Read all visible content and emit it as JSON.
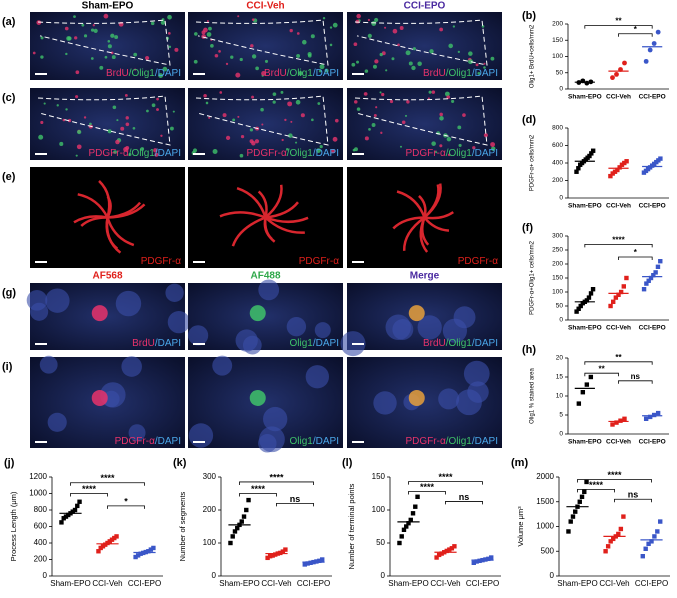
{
  "columns": [
    {
      "text": "Sham-EPO",
      "color": "#000000"
    },
    {
      "text": "CCI-Veh",
      "color": "#e0201b"
    },
    {
      "text": "CCI-EPO",
      "color": "#4a2aa0"
    }
  ],
  "channel_headers": [
    {
      "text": "AF568",
      "color": "#e0201b"
    },
    {
      "text": "AF488",
      "color": "#2fa84a"
    },
    {
      "text": "Merge",
      "color": "#4a2aa0"
    }
  ],
  "image_rows": [
    {
      "letter": "(a)",
      "labels": [
        [
          {
            "text": "BrdU",
            "color": "#e8336b"
          },
          {
            "text": "/Olig1",
            "color": "#3fc26a"
          },
          {
            "text": "/DAPI",
            "color": "#4aa6e8"
          }
        ],
        [
          {
            "text": "BrdU",
            "color": "#e8336b"
          },
          {
            "text": "/Olig1",
            "color": "#3fc26a"
          },
          {
            "text": "/DAPI",
            "color": "#4aa6e8"
          }
        ],
        [
          {
            "text": "BrdU",
            "color": "#e8336b"
          },
          {
            "text": "/Olig1",
            "color": "#3fc26a"
          },
          {
            "text": "/DAPI",
            "color": "#4aa6e8"
          }
        ]
      ]
    },
    {
      "letter": "(c)",
      "labels": [
        [
          {
            "text": "PDGFr-α",
            "color": "#e8336b"
          },
          {
            "text": "/Olig1",
            "color": "#3fc26a"
          },
          {
            "text": "/DAPI",
            "color": "#4aa6e8"
          }
        ],
        [
          {
            "text": "PDGFr-α",
            "color": "#e8336b"
          },
          {
            "text": "/Olig1",
            "color": "#3fc26a"
          },
          {
            "text": "/DAPI",
            "color": "#4aa6e8"
          }
        ],
        [
          {
            "text": "PDGFr-α",
            "color": "#e8336b"
          },
          {
            "text": "/Olig1",
            "color": "#3fc26a"
          },
          {
            "text": "/DAPI",
            "color": "#4aa6e8"
          }
        ]
      ]
    },
    {
      "letter": "(e)",
      "labels": [
        [
          {
            "text": "PDGFr-α",
            "color": "#e0201b"
          }
        ],
        [
          {
            "text": "PDGFr-α",
            "color": "#e0201b"
          }
        ],
        [
          {
            "text": "PDGFr-α",
            "color": "#e0201b"
          }
        ]
      ]
    },
    {
      "letter": "(g)",
      "labels": [
        [
          {
            "text": "BrdU",
            "color": "#e8336b"
          },
          {
            "text": "/DAPI",
            "color": "#4aa6e8"
          }
        ],
        [
          {
            "text": "Olig1",
            "color": "#3fc26a"
          },
          {
            "text": "/DAPI",
            "color": "#4aa6e8"
          }
        ],
        [
          {
            "text": "BrdU",
            "color": "#e8336b"
          },
          {
            "text": "/Olig1",
            "color": "#3fc26a"
          },
          {
            "text": "/DAPI",
            "color": "#4aa6e8"
          }
        ]
      ]
    },
    {
      "letter": "(i)",
      "labels": [
        [
          {
            "text": "PDGFr-α",
            "color": "#e8336b"
          },
          {
            "text": "/DAPI",
            "color": "#4aa6e8"
          }
        ],
        [
          {
            "text": "Olig1",
            "color": "#3fc26a"
          },
          {
            "text": "/DAPI",
            "color": "#4aa6e8"
          }
        ],
        [
          {
            "text": "PDGFr-α",
            "color": "#e8336b"
          },
          {
            "text": "/Olig1",
            "color": "#3fc26a"
          },
          {
            "text": "/DAPI",
            "color": "#4aa6e8"
          }
        ]
      ]
    }
  ],
  "chart_data": [
    {
      "type": "dot",
      "panel": "(b)",
      "ylabel": "Olig1+ BrdU+cells/mm2",
      "categories": [
        "Sham-EPO",
        "CCI-Veh",
        "CCI-EPO"
      ],
      "colors": [
        "#000000",
        "#e0201b",
        "#3a56c8"
      ],
      "markers": [
        "circle",
        "circle",
        "circle"
      ],
      "groups": [
        [
          20,
          25,
          18,
          22
        ],
        [
          35,
          45,
          60,
          80
        ],
        [
          85,
          120,
          140,
          175
        ]
      ],
      "means": [
        21,
        55,
        130
      ],
      "ylim": [
        0,
        200
      ],
      "yticks": [
        0,
        50,
        100,
        150,
        200
      ],
      "annotations": [
        {
          "text": "**",
          "from": 0,
          "to": 2,
          "y": 195
        },
        {
          "text": "*",
          "from": 1,
          "to": 2,
          "y": 170
        }
      ]
    },
    {
      "type": "dot",
      "panel": "(d)",
      "ylabel": "PDGFr-α+ cells/mm2",
      "categories": [
        "Sham-EPO",
        "CCI-Veh",
        "CCI-EPO"
      ],
      "colors": [
        "#000000",
        "#e0201b",
        "#3a56c8"
      ],
      "markers": [
        "square",
        "square",
        "square"
      ],
      "groups": [
        [
          300,
          340,
          380,
          400,
          420,
          440,
          460,
          480,
          510,
          540
        ],
        [
          250,
          280,
          300,
          320,
          350,
          380,
          400,
          420
        ],
        [
          290,
          310,
          330,
          350,
          370,
          390,
          410,
          430,
          450
        ]
      ],
      "means": [
        420,
        340,
        360
      ],
      "ylim": [
        0,
        800
      ],
      "yticks": [
        0,
        200,
        400,
        600,
        800
      ],
      "annotations": []
    },
    {
      "type": "dot",
      "panel": "(f)",
      "ylabel": "PDGFr-α+Olig1+ cells/mm2",
      "categories": [
        "Sham-EPO",
        "CCI-Veh",
        "CCI-EPO"
      ],
      "colors": [
        "#000000",
        "#e0201b",
        "#3a56c8"
      ],
      "markers": [
        "square",
        "square",
        "square"
      ],
      "groups": [
        [
          30,
          40,
          50,
          60,
          65,
          70,
          80,
          95,
          110
        ],
        [
          50,
          65,
          80,
          90,
          100,
          120,
          150
        ],
        [
          110,
          130,
          140,
          150,
          160,
          170,
          190,
          210
        ]
      ],
      "means": [
        65,
        95,
        155
      ],
      "ylim": [
        0,
        300
      ],
      "yticks": [
        0,
        50,
        100,
        150,
        200,
        250,
        300
      ],
      "annotations": [
        {
          "text": "****",
          "from": 0,
          "to": 2,
          "y": 270
        },
        {
          "text": "*",
          "from": 1,
          "to": 2,
          "y": 225
        }
      ]
    },
    {
      "type": "dot",
      "panel": "(h)",
      "ylabel": "Olig1 % stained area",
      "categories": [
        "Sham-EPO",
        "CCI-Veh",
        "CCI-EPO"
      ],
      "colors": [
        "#000000",
        "#e0201b",
        "#3a56c8"
      ],
      "markers": [
        "square",
        "square",
        "square"
      ],
      "groups": [
        [
          8,
          11,
          13,
          15
        ],
        [
          2.5,
          3,
          3.5,
          4
        ],
        [
          4,
          4.5,
          5,
          5.5
        ]
      ],
      "means": [
        12,
        3.3,
        4.8
      ],
      "ylim": [
        0,
        20
      ],
      "yticks": [
        0,
        5,
        10,
        15,
        20
      ],
      "annotations": [
        {
          "text": "**",
          "from": 0,
          "to": 1,
          "y": 16
        },
        {
          "text": "**",
          "from": 0,
          "to": 2,
          "y": 19
        },
        {
          "text": "ns",
          "from": 1,
          "to": 2,
          "y": 14
        }
      ]
    },
    {
      "type": "dot",
      "panel": "(j)",
      "ylabel": "Process Length (μm)",
      "categories": [
        "Sham-EPO",
        "CCI-Veh",
        "CCI-EPO"
      ],
      "colors": [
        "#000000",
        "#e0201b",
        "#3a56c8"
      ],
      "markers": [
        "square",
        "square",
        "square"
      ],
      "groups": [
        [
          650,
          700,
          720,
          740,
          760,
          780,
          800,
          850,
          900
        ],
        [
          300,
          340,
          360,
          380,
          400,
          420,
          440,
          460,
          480
        ],
        [
          230,
          250,
          270,
          280,
          290,
          300,
          320,
          340
        ]
      ],
      "means": [
        760,
        390,
        285
      ],
      "ylim": [
        0,
        1200
      ],
      "yticks": [
        0,
        200,
        400,
        600,
        800,
        1000,
        1200
      ],
      "annotations": [
        {
          "text": "****",
          "from": 0,
          "to": 1,
          "y": 1000
        },
        {
          "text": "****",
          "from": 0,
          "to": 2,
          "y": 1130
        },
        {
          "text": "*",
          "from": 1,
          "to": 2,
          "y": 850
        }
      ]
    },
    {
      "type": "dot",
      "panel": "(k)",
      "ylabel": "Number of segments",
      "categories": [
        "Sham-EPO",
        "CCI-Veh",
        "CCI-EPO"
      ],
      "colors": [
        "#000000",
        "#e0201b",
        "#3a56c8"
      ],
      "markers": [
        "square",
        "square",
        "square"
      ],
      "groups": [
        [
          100,
          120,
          135,
          145,
          155,
          165,
          180,
          200,
          230
        ],
        [
          55,
          60,
          62,
          65,
          68,
          70,
          74,
          80
        ],
        [
          35,
          38,
          40,
          42,
          44,
          46,
          50
        ]
      ],
      "means": [
        155,
        68,
        42
      ],
      "ylim": [
        0,
        300
      ],
      "yticks": [
        0,
        100,
        200,
        300
      ],
      "annotations": [
        {
          "text": "****",
          "from": 0,
          "to": 1,
          "y": 250
        },
        {
          "text": "****",
          "from": 0,
          "to": 2,
          "y": 285
        },
        {
          "text": "ns",
          "from": 1,
          "to": 2,
          "y": 220
        }
      ]
    },
    {
      "type": "dot",
      "panel": "(l)",
      "ylabel": "Number of terminal points",
      "categories": [
        "Sham-EPO",
        "CCI-Veh",
        "CCI-EPO"
      ],
      "colors": [
        "#000000",
        "#e0201b",
        "#3a56c8"
      ],
      "markers": [
        "square",
        "square",
        "square"
      ],
      "groups": [
        [
          50,
          60,
          70,
          75,
          80,
          85,
          95,
          105,
          120
        ],
        [
          28,
          32,
          34,
          36,
          38,
          40,
          42,
          45
        ],
        [
          20,
          22,
          23,
          24,
          25,
          26,
          28
        ]
      ],
      "means": [
        82,
        36,
        24
      ],
      "ylim": [
        0,
        150
      ],
      "yticks": [
        0,
        50,
        100,
        150
      ],
      "annotations": [
        {
          "text": "****",
          "from": 0,
          "to": 1,
          "y": 128
        },
        {
          "text": "****",
          "from": 0,
          "to": 2,
          "y": 143
        },
        {
          "text": "ns",
          "from": 1,
          "to": 2,
          "y": 113
        }
      ]
    },
    {
      "type": "dot",
      "panel": "(m)",
      "ylabel": "Volume μm³",
      "categories": [
        "Sham-EPO",
        "CCI-Veh",
        "CCI-EPO"
      ],
      "colors": [
        "#000000",
        "#e0201b",
        "#3a56c8"
      ],
      "markers": [
        "square",
        "square",
        "square"
      ],
      "groups": [
        [
          900,
          1100,
          1200,
          1300,
          1400,
          1500,
          1600,
          1700,
          1900
        ],
        [
          500,
          600,
          700,
          750,
          800,
          850,
          950,
          1200
        ],
        [
          400,
          550,
          650,
          700,
          800,
          900,
          1100
        ]
      ],
      "means": [
        1400,
        800,
        730
      ],
      "ylim": [
        0,
        2000
      ],
      "yticks": [
        0,
        500,
        1000,
        1500,
        2000
      ],
      "annotations": [
        {
          "text": "****",
          "from": 0,
          "to": 1,
          "y": 1750
        },
        {
          "text": "****",
          "from": 0,
          "to": 2,
          "y": 1950
        },
        {
          "text": "ns",
          "from": 1,
          "to": 2,
          "y": 1550
        }
      ]
    }
  ]
}
